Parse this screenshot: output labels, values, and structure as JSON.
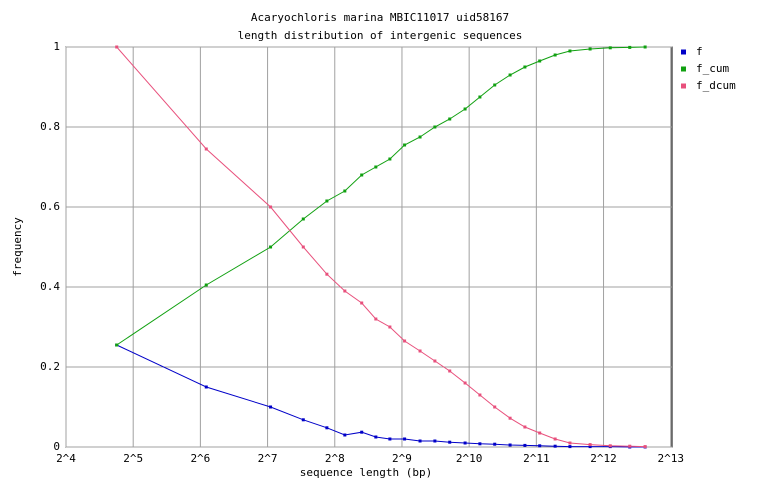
{
  "chart_data": {
    "type": "line",
    "title": "Acaryochloris marina MBIC11017 uid58167",
    "subtitle": "length distribution of intergenic sequences",
    "xlabel": "sequence length (bp)",
    "ylabel": "frequency",
    "xscale": "log",
    "log_base": 2,
    "x": [
      27,
      68,
      132,
      185,
      236,
      284,
      338,
      391,
      452,
      526,
      617,
      719,
      838,
      982,
      1144,
      1333,
      1562,
      1820,
      2120,
      2486,
      2896,
      3566,
      4390,
      5368,
      6290
    ],
    "series": [
      {
        "name": "f",
        "color": "#0000c8",
        "values": [
          0.255,
          0.15,
          0.1,
          0.068,
          0.048,
          0.03,
          0.037,
          0.025,
          0.02,
          0.02,
          0.015,
          0.015,
          0.012,
          0.01,
          0.008,
          0.007,
          0.005,
          0.004,
          0.003,
          0.002,
          0.001,
          0.001,
          0.001,
          0,
          0
        ]
      },
      {
        "name": "f_cum",
        "color": "#10a010",
        "values": [
          0.255,
          0.405,
          0.5,
          0.57,
          0.615,
          0.64,
          0.68,
          0.7,
          0.72,
          0.755,
          0.775,
          0.8,
          0.82,
          0.845,
          0.875,
          0.905,
          0.93,
          0.95,
          0.965,
          0.98,
          0.99,
          0.995,
          0.998,
          0.999,
          1
        ]
      },
      {
        "name": "f_dcum",
        "color": "#e8507c",
        "values": [
          1,
          0.745,
          0.6,
          0.5,
          0.432,
          0.39,
          0.36,
          0.32,
          0.3,
          0.265,
          0.24,
          0.215,
          0.19,
          0.16,
          0.13,
          0.1,
          0.072,
          0.05,
          0.035,
          0.02,
          0.01,
          0.006,
          0.003,
          0.002,
          0.001
        ]
      }
    ],
    "xlim": [
      16,
      8300
    ],
    "xticks": [
      {
        "value": 16,
        "label": "2^4"
      },
      {
        "value": 32,
        "label": "2^5"
      },
      {
        "value": 64,
        "label": "2^6"
      },
      {
        "value": 128,
        "label": "2^7"
      },
      {
        "value": 256,
        "label": "2^8"
      },
      {
        "value": 512,
        "label": "2^9"
      },
      {
        "value": 1024,
        "label": "2^10"
      },
      {
        "value": 2048,
        "label": "2^11"
      },
      {
        "value": 4096,
        "label": "2^12"
      },
      {
        "value": 8192,
        "label": "2^13"
      }
    ],
    "ylim": [
      0,
      1
    ],
    "yticks": [
      0,
      0.2,
      0.4,
      0.6,
      0.8,
      1
    ],
    "grid": true,
    "legend": "right"
  }
}
